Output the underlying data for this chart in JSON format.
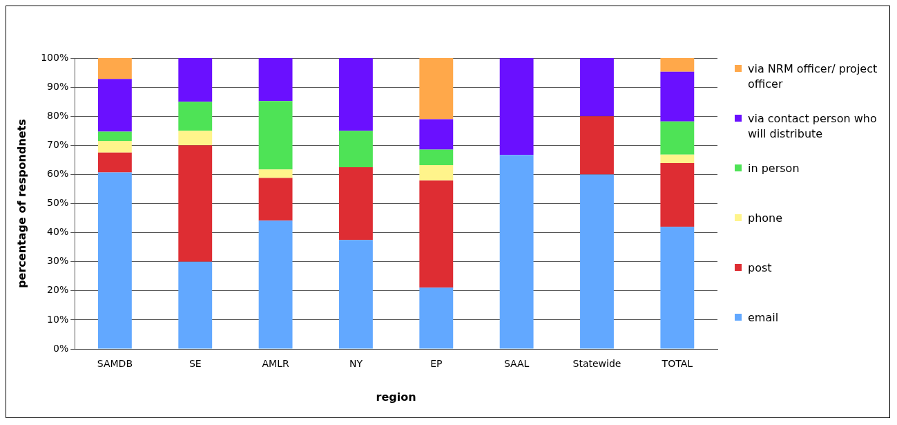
{
  "chart_data": {
    "type": "bar",
    "stacked": true,
    "xlabel": "region",
    "ylabel": "percentage of respondnets",
    "categories": [
      "SAMDB",
      "SE",
      "AMLR",
      "NY",
      "EP",
      "SAAL",
      "Statewide",
      "TOTAL"
    ],
    "series": [
      {
        "name": "email",
        "color": "#62a8ff",
        "values": [
          60.7,
          30,
          44.1,
          37.5,
          21.1,
          66.7,
          60,
          42.0
        ]
      },
      {
        "name": "post",
        "color": "#de2d33",
        "values": [
          6.8,
          40,
          14.7,
          25,
          36.8,
          0,
          20,
          21.9
        ]
      },
      {
        "name": "phone",
        "color": "#fff48b",
        "values": [
          4.0,
          5,
          2.9,
          0,
          5.3,
          0,
          0,
          2.9
        ]
      },
      {
        "name": "in person",
        "color": "#4ee356",
        "values": [
          3.2,
          10,
          23.5,
          12.5,
          5.3,
          0,
          0,
          11.4
        ]
      },
      {
        "name": "via contact person who will distribute",
        "color": "#6a10ff",
        "values": [
          18.1,
          15,
          14.8,
          25,
          10.5,
          33.3,
          20,
          17.1
        ]
      },
      {
        "name": "via NRM officer/ project officer",
        "color": "#ffa84a",
        "values": [
          7.2,
          0,
          0,
          0,
          21.1,
          0,
          0,
          4.7
        ]
      }
    ],
    "ylim": [
      0,
      100
    ],
    "yticks": [
      {
        "value": 0,
        "label": "0%"
      },
      {
        "value": 10,
        "label": "10%"
      },
      {
        "value": 20,
        "label": "20%"
      },
      {
        "value": 30,
        "label": "30%"
      },
      {
        "value": 40,
        "label": "40%"
      },
      {
        "value": 50,
        "label": "50%"
      },
      {
        "value": 60,
        "label": "60%"
      },
      {
        "value": 70,
        "label": "70%"
      },
      {
        "value": 80,
        "label": "80%"
      },
      {
        "value": 90,
        "label": "90%"
      },
      {
        "value": 100,
        "label": "100%"
      }
    ],
    "grid": "y",
    "legend": "right"
  }
}
